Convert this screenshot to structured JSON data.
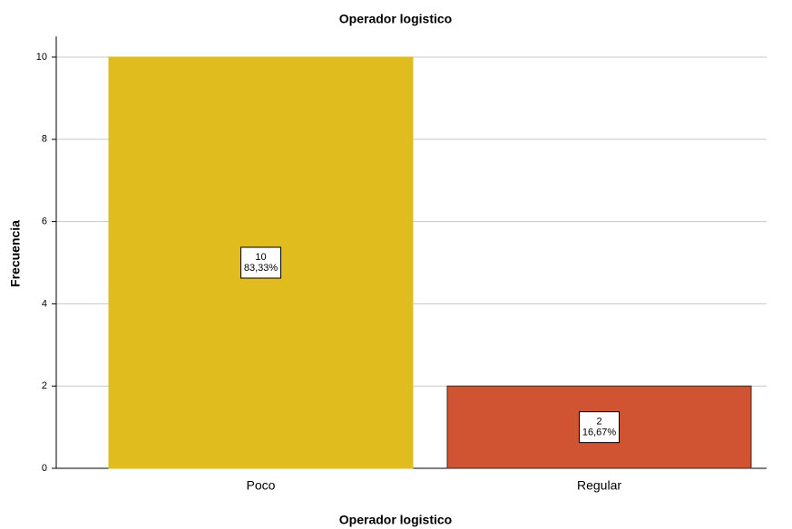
{
  "chart_data": {
    "type": "bar",
    "title": "Operador logistico",
    "x_label": "Operador logistico",
    "y_label": "Frecuencia",
    "categories": [
      "Poco",
      "Regular"
    ],
    "values": [
      10,
      2
    ],
    "percent_labels": [
      "83,33%",
      "16,67%"
    ],
    "colors": [
      "#e1bc1f",
      "#d05332"
    ],
    "ylim": [
      0,
      10.5
    ],
    "yticks": [
      0,
      2,
      4,
      6,
      8,
      10
    ],
    "grid": true
  }
}
